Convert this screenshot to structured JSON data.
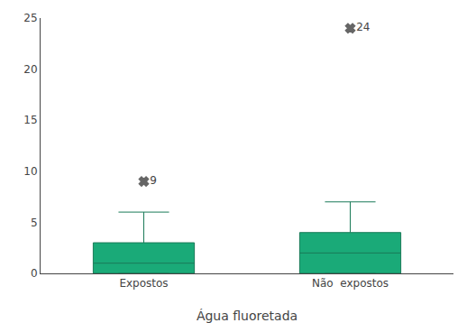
{
  "chart_data": {
    "type": "box",
    "xlabel": "Água fluoretada",
    "categories": [
      "Expostos",
      "Não  expostos"
    ],
    "q1": [
      0,
      0
    ],
    "median": [
      1,
      2
    ],
    "q3": [
      3,
      4
    ],
    "whisker_low": [
      0,
      0
    ],
    "whisker_high": [
      6,
      7
    ],
    "outliers": [
      9,
      24
    ],
    "data_labels": true,
    "marker": "x",
    "color": "#1aaa78",
    "ylim": [
      0,
      25
    ],
    "yticks": [
      0,
      5,
      10,
      15,
      20,
      25
    ],
    "grid": false
  }
}
